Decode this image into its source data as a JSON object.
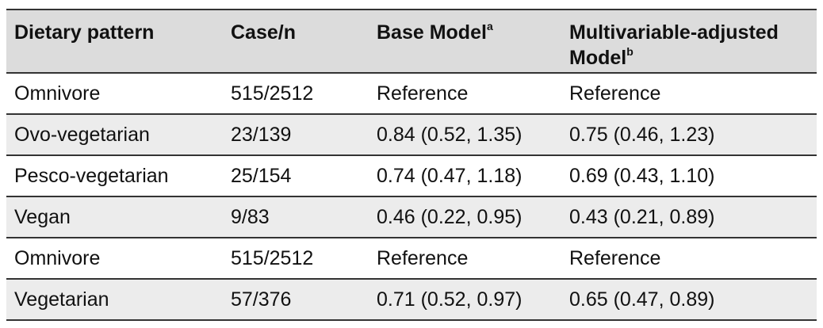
{
  "table": {
    "headers": {
      "col1": "Dietary pattern",
      "col2": "Case/n",
      "col3": "Base Model",
      "col3_sup": "a",
      "col4_line1": "Multivariable-adjusted",
      "col4_line2": "Model",
      "col4_sup": "b"
    },
    "rows": [
      {
        "pattern": "Omnivore",
        "case_n": "515/2512",
        "base": "Reference",
        "adjusted": "Reference"
      },
      {
        "pattern": "Ovo-vegetarian",
        "case_n": "23/139",
        "base": "0.84 (0.52, 1.35)",
        "adjusted": "0.75 (0.46, 1.23)"
      },
      {
        "pattern": "Pesco-vegetarian",
        "case_n": "25/154",
        "base": "0.74 (0.47, 1.18)",
        "adjusted": "0.69 (0.43, 1.10)"
      },
      {
        "pattern": "Vegan",
        "case_n": "9/83",
        "base": "0.46 (0.22, 0.95)",
        "adjusted": "0.43 (0.21, 0.89)"
      },
      {
        "pattern": "Omnivore",
        "case_n": "515/2512",
        "base": "Reference",
        "adjusted": "Reference"
      },
      {
        "pattern": "Vegetarian",
        "case_n": "57/376",
        "base": "0.71 (0.52, 0.97)",
        "adjusted": "0.65 (0.47, 0.89)"
      }
    ]
  },
  "colors": {
    "header_bg": "#dcdcdc",
    "row_shade": "#ececec",
    "rule": "#333333"
  }
}
